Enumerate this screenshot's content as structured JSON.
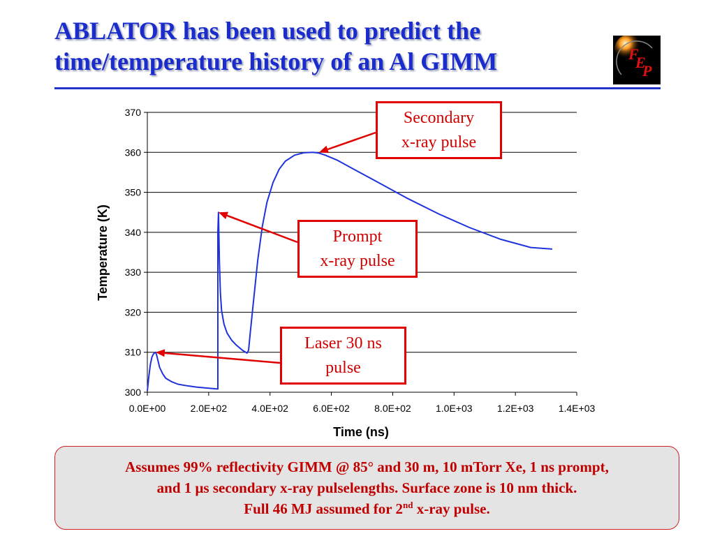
{
  "slide": {
    "title_lines": [
      "ABLATOR has been used to predict the",
      "time/temperature history of an Al GIMM"
    ],
    "logo_text": "FEP",
    "colors": {
      "title": "#1a2ccc",
      "accent": "#e00000",
      "series": "#1f33dd",
      "note_bg": "#e4e4e4"
    }
  },
  "chart_data": {
    "type": "line",
    "title": "",
    "xlabel": "Time (ns)",
    "ylabel": "Temperature (K)",
    "xlim": [
      0,
      1400
    ],
    "ylim": [
      300,
      370
    ],
    "x_ticks": [
      0,
      200,
      400,
      600,
      800,
      1000,
      1200,
      1400
    ],
    "x_tick_labels": [
      "0.0E+00",
      "2.0E+02",
      "4.0E+02",
      "6.0E+02",
      "8.0E+02",
      "1.0E+03",
      "1.2E+03",
      "1.4E+03"
    ],
    "y_ticks": [
      300,
      310,
      320,
      330,
      340,
      350,
      360,
      370
    ],
    "y_tick_labels": [
      "300",
      "310",
      "320",
      "330",
      "340",
      "350",
      "360",
      "370"
    ],
    "grid": "horizontal",
    "legend": "none",
    "series": [
      {
        "color": "#1f33dd",
        "x": [
          0,
          5,
          10,
          15,
          20,
          25,
          27,
          30,
          35,
          40,
          50,
          60,
          80,
          100,
          130,
          160,
          200,
          230,
          230,
          232,
          235,
          238,
          242,
          250,
          260,
          275,
          290,
          310,
          325,
          330,
          335,
          345,
          360,
          375,
          390,
          410,
          430,
          450,
          480,
          510,
          540,
          560,
          580,
          620,
          680,
          750,
          850,
          950,
          1050,
          1150,
          1250,
          1320
        ],
        "y": [
          300.3,
          304.0,
          307.0,
          308.8,
          309.6,
          309.9,
          310.0,
          309.4,
          307.8,
          306.2,
          304.6,
          303.5,
          302.6,
          302.0,
          301.6,
          301.3,
          301.0,
          300.8,
          340.0,
          345.0,
          333.0,
          325.0,
          320.5,
          317.0,
          314.8,
          313.0,
          311.8,
          310.5,
          309.8,
          310.5,
          314.5,
          322.0,
          333.0,
          341.5,
          347.5,
          352.5,
          355.8,
          357.8,
          359.3,
          359.9,
          360.0,
          359.8,
          359.3,
          358.0,
          355.5,
          352.6,
          348.4,
          344.6,
          341.2,
          338.3,
          336.2,
          335.8
        ]
      }
    ],
    "annotations": [
      {
        "lines": [
          "Secondary",
          "x-ray pulse"
        ],
        "x": 560,
        "y": 360
      },
      {
        "lines": [
          "Prompt",
          "x-ray pulse"
        ],
        "x": 232,
        "y": 345
      },
      {
        "lines": [
          "Laser 30 ns",
          "pulse"
        ],
        "x": 27,
        "y": 310
      }
    ]
  },
  "note": {
    "line1": "Assumes 99% reflectivity GIMM @ 85° and 30 m, 10 mTorr Xe, 1 ns prompt,",
    "line2": "and 1 μs secondary x-ray pulselengths. Surface zone is 10 nm thick.",
    "line3_main": "Full 46 MJ assumed for 2",
    "line3_sup": "nd",
    "line3_tail": " x-ray pulse."
  }
}
